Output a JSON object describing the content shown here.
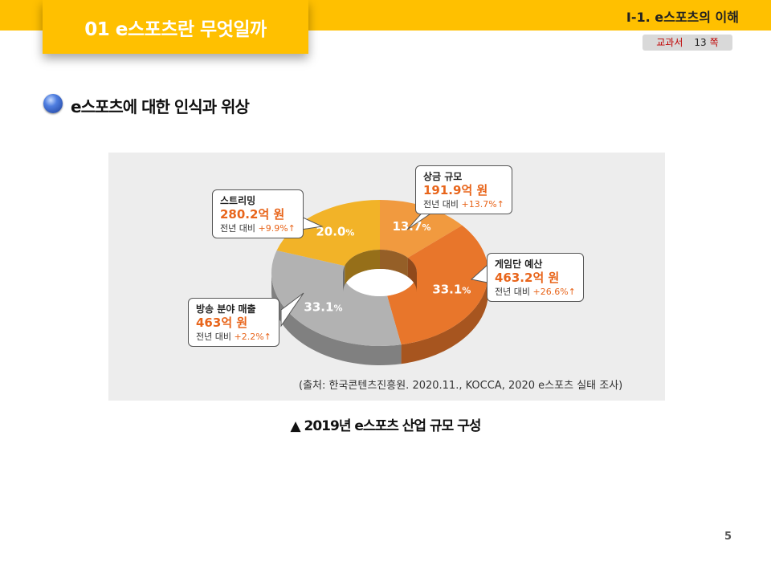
{
  "header": {
    "title": "01 e스포츠란 무엇일까",
    "section": "Ⅰ-1. e스포츠의 이해",
    "textbook_label": "교과서",
    "textbook_page": "13",
    "textbook_unit": "쪽"
  },
  "subheading": "e스포츠에 대한 인식과 위상",
  "caption": "▲ 2019년 e스포츠 산업 규모 구성",
  "page_number": "5",
  "colors": {
    "accent": "#ffc000",
    "orange_dark": "#e8762b",
    "orange_light": "#f19a3f",
    "gray": "#b2b2b2",
    "yellow": "#f2b328"
  },
  "chart_data": {
    "type": "pie",
    "style": "3d-donut",
    "slices": [
      {
        "label": "상금 규모",
        "value": 13.7,
        "percent_label": "13.7",
        "amount": "191.9",
        "amount_unit": "억 원",
        "growth_label": "전년 대비",
        "growth": "+13.7%↑",
        "color": "#f19a3f"
      },
      {
        "label": "게임단 예산",
        "value": 33.1,
        "percent_label": "33.1",
        "amount": "463.2",
        "amount_unit": "억 원",
        "growth_label": "전년 대비",
        "growth": "+26.6%↑",
        "color": "#e8762b"
      },
      {
        "label": "방송 분야 매출",
        "value": 33.1,
        "percent_label": "33.1",
        "amount": "463",
        "amount_unit": "억 원",
        "growth_label": "전년 대비",
        "growth": "+2.2%↑",
        "color": "#b2b2b2"
      },
      {
        "label": "스트리밍",
        "value": 20.0,
        "percent_label": "20.0",
        "amount": "280.2",
        "amount_unit": "억 원",
        "growth_label": "전년 대비",
        "growth": "+9.9%↑",
        "color": "#f2b328"
      }
    ],
    "percent_suffix": "%",
    "source": "(출처: 한국콘텐츠진흥원. 2020.11., KOCCA, 2020 e스포츠 실태 조사)"
  }
}
